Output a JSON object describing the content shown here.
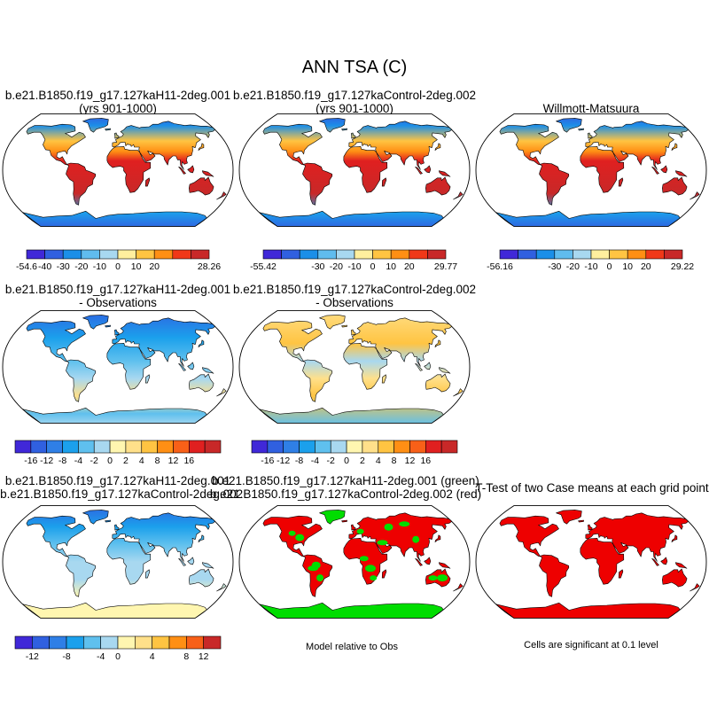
{
  "figure": {
    "title": "ANN TSA (C)",
    "panel_titles": {
      "p1": [
        "b.e21.B1850.f19_g17.127kaH11-2deg.001",
        "(yrs 901-1000)"
      ],
      "p2": [
        "b.e21.B1850.f19_g17.127kaControl-2deg.002",
        "(yrs 901-1000)"
      ],
      "p3": [
        "Willmott-Matsuura"
      ],
      "p4": [
        "b.e21.B1850.f19_g17.127kaH11-2deg.001",
        "- Observations"
      ],
      "p5": [
        "b.e21.B1850.f19_g17.127kaControl-2deg.002",
        "- Observations"
      ],
      "p7": [
        "b.e21.B1850.f19_g17.127kaH11-2deg.001",
        "- b.e21.B1850.f19_g17.127kaControl-2deg.002"
      ],
      "p8": [
        "b.e21.B1850.f19_g17.127kaH11-2deg.001 (green)",
        "b.e21.B1850.f19_g17.127kaControl-2deg.002 (red)"
      ],
      "p9": [
        "T-Test of two Case means at each grid point"
      ]
    },
    "captions": {
      "p8": "Model relative to Obs",
      "p9": "Cells are significant at 0.1 level"
    }
  },
  "chart_data": [
    {
      "id": "p1",
      "type": "heatmap",
      "projection": "robinson",
      "title": "b.e21.B1850.f19_g17.127kaH11-2deg.001 (yrs 901-1000)",
      "variable": "TSA",
      "units": "C",
      "colorbar": {
        "colors": [
          "#4028d8",
          "#3060e0",
          "#1b8fe8",
          "#60bcee",
          "#a8d8f0",
          "#ffef9e",
          "#ffc442",
          "#ff8f14",
          "#f03818",
          "#c82828"
        ],
        "tick_labels": [
          "-54.6",
          "-40",
          "-30",
          "-20",
          "-10",
          "0",
          "10",
          "20",
          "28.26"
        ],
        "tick_boundaries": [
          0,
          1,
          2,
          3,
          4,
          5,
          6,
          7,
          10
        ]
      }
    },
    {
      "id": "p2",
      "type": "heatmap",
      "projection": "robinson",
      "title": "b.e21.B1850.f19_g17.127kaControl-2deg.002 (yrs 901-1000)",
      "variable": "TSA",
      "units": "C",
      "colorbar": {
        "colors": [
          "#4028d8",
          "#3060e0",
          "#1b8fe8",
          "#60bcee",
          "#a8d8f0",
          "#ffef9e",
          "#ffc442",
          "#ff8f14",
          "#f03818",
          "#c82828"
        ],
        "tick_labels": [
          "-55.42",
          "-30",
          "-20",
          "-10",
          "0",
          "10",
          "20",
          "29.77"
        ],
        "tick_boundaries": [
          0,
          3,
          4,
          5,
          6,
          7,
          8,
          10
        ]
      }
    },
    {
      "id": "p3",
      "type": "heatmap",
      "projection": "robinson",
      "title": "Willmott-Matsuura",
      "variable": "TSA",
      "units": "C",
      "colorbar": {
        "colors": [
          "#4028d8",
          "#3060e0",
          "#1b8fe8",
          "#60bcee",
          "#a8d8f0",
          "#ffef9e",
          "#ffc442",
          "#ff8f14",
          "#f03818",
          "#c82828"
        ],
        "tick_labels": [
          "-56.16",
          "-30",
          "-20",
          "-10",
          "0",
          "10",
          "20",
          "29.22"
        ],
        "tick_boundaries": [
          0,
          3,
          4,
          5,
          6,
          7,
          8,
          10
        ]
      }
    },
    {
      "id": "p4",
      "type": "heatmap",
      "projection": "robinson",
      "title": "b.e21.B1850.f19_g17.127kaH11-2deg.001 - Observations",
      "colorbar": {
        "colors": [
          "#4028d8",
          "#3060e0",
          "#2f7fe6",
          "#1ba0ec",
          "#5fc0ee",
          "#a8d8f0",
          "#fff6b0",
          "#ffe08a",
          "#ffc442",
          "#ff8f14",
          "#f86018",
          "#e02020",
          "#c82828"
        ],
        "tick_labels": [
          "-16",
          "-12",
          "-8",
          "-4",
          "-2",
          "0",
          "2",
          "4",
          "8",
          "12",
          "16"
        ],
        "tick_boundaries": [
          1,
          2,
          3,
          4,
          5,
          6,
          7,
          8,
          9,
          10,
          11
        ]
      }
    },
    {
      "id": "p5",
      "type": "heatmap",
      "projection": "robinson",
      "title": "b.e21.B1850.f19_g17.127kaControl-2deg.002 - Observations",
      "colorbar": {
        "colors": [
          "#4028d8",
          "#3060e0",
          "#2f7fe6",
          "#1ba0ec",
          "#5fc0ee",
          "#a8d8f0",
          "#fff6b0",
          "#ffe08a",
          "#ffc442",
          "#ff8f14",
          "#f86018",
          "#e02020",
          "#c82828"
        ],
        "tick_labels": [
          "-16",
          "-12",
          "-8",
          "-4",
          "-2",
          "0",
          "2",
          "4",
          "8",
          "12",
          "16"
        ],
        "tick_boundaries": [
          1,
          2,
          3,
          4,
          5,
          6,
          7,
          8,
          9,
          10,
          11
        ]
      }
    },
    {
      "id": "p7",
      "type": "heatmap",
      "projection": "robinson",
      "title": "b.e21.B1850.f19_g17.127kaH11-2deg.001 - b.e21.B1850.f19_g17.127kaControl-2deg.002",
      "colorbar": {
        "colors": [
          "#4028d8",
          "#3060e0",
          "#2f7fe6",
          "#1ba0ec",
          "#5fc0ee",
          "#a8d8f0",
          "#fff6b0",
          "#ffe08a",
          "#ffc442",
          "#ff8f14",
          "#f86018",
          "#c82828"
        ],
        "tick_labels": [
          "-12",
          "-8",
          "-4",
          "0",
          "4",
          "8",
          "12"
        ],
        "tick_boundaries": [
          1,
          3,
          5,
          6,
          8,
          10,
          11
        ]
      }
    },
    {
      "id": "p8",
      "type": "heatmap",
      "projection": "robinson",
      "title": "Model relative to Obs",
      "legend": {
        "green": "b.e21.B1850.f19_g17.127kaH11-2deg.001",
        "red": "b.e21.B1850.f19_g17.127kaControl-2deg.002"
      }
    },
    {
      "id": "p9",
      "type": "heatmap",
      "projection": "robinson",
      "title": "T-Test of two Case means at each grid point",
      "significance_level": 0.1
    }
  ],
  "colors": {
    "red": "#ee0000",
    "green": "#00dd00",
    "ocean": "#ffffff",
    "coast": "#000000"
  }
}
